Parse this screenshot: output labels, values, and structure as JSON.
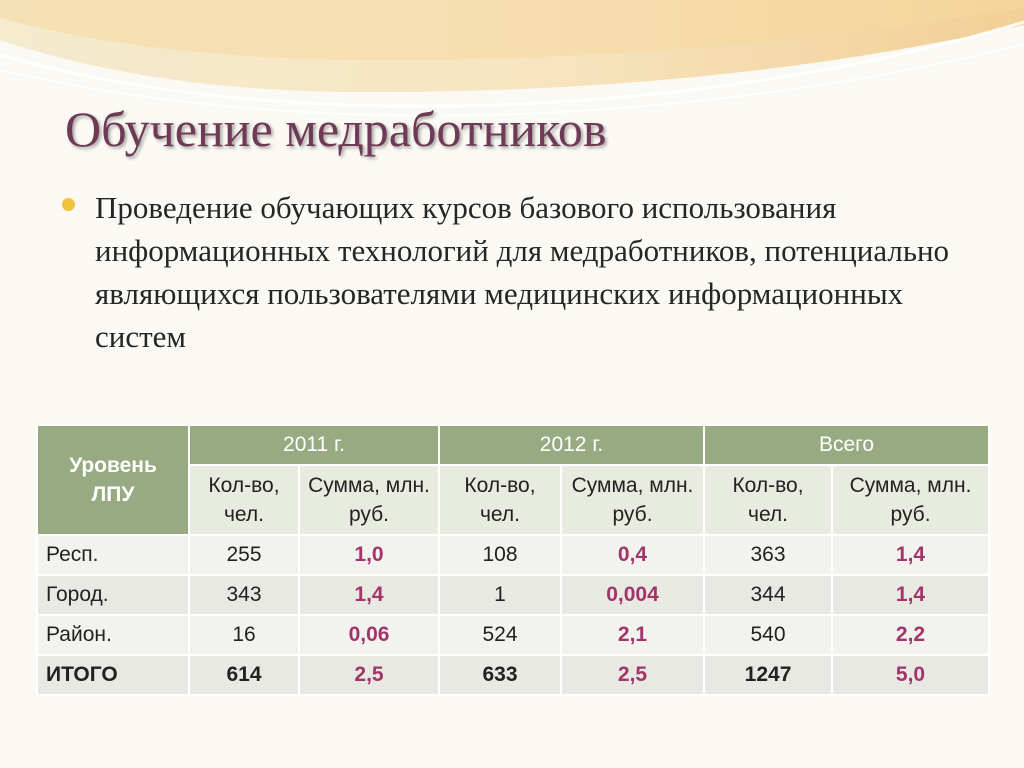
{
  "slide": {
    "title": "Обучение медработников",
    "bullet": "Проведение обучающих курсов базового использования информационных технологий для медработников, потенциально являющихся пользователями медицинских информационных систем"
  },
  "colors": {
    "title": "#6e3a55",
    "bullet": "#efc33e",
    "header": "#97aa82",
    "sum_value": "#a3346a"
  },
  "chart_data": {
    "type": "table",
    "header": {
      "level": "Уровень ЛПУ",
      "years": [
        "2011 г.",
        "2012 г.",
        "Всего"
      ],
      "count_label": "Кол-во, чел.",
      "sum_label": "Сумма, млн. руб."
    },
    "rows": [
      {
        "label": "Респ.",
        "values": [
          "255",
          "1,0",
          "108",
          "0,4",
          "363",
          "1,4"
        ]
      },
      {
        "label": "Город.",
        "values": [
          "343",
          "1,4",
          "1",
          "0,004",
          "344",
          "1,4"
        ]
      },
      {
        "label": "Район.",
        "values": [
          "16",
          "0,06",
          "524",
          "2,1",
          "540",
          "2,2"
        ]
      },
      {
        "label": "ИТОГО",
        "values": [
          "614",
          "2,5",
          "633",
          "2,5",
          "1247",
          "5,0"
        ]
      }
    ]
  }
}
